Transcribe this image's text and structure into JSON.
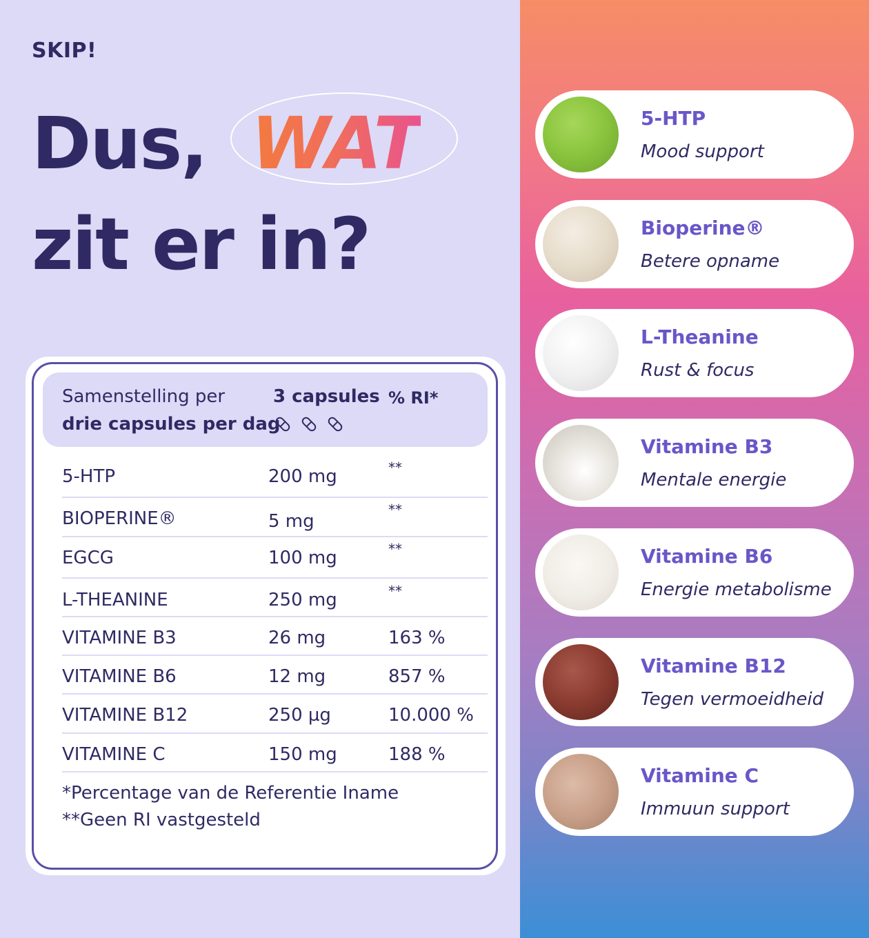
{
  "brand": "SKIP!",
  "headline": {
    "line1_prefix": "Dus,",
    "line1_highlight": "WAT",
    "line2": "zit er in?"
  },
  "table": {
    "header": {
      "label_line1": "Samenstelling per",
      "label_line2": "drie capsules per dag",
      "amount_col": "3 capsules",
      "ri_col": "% RI*"
    },
    "rows": [
      {
        "name": "5-HTP",
        "amount": "200 mg",
        "ri": "**"
      },
      {
        "name": "BIOPERINE®",
        "amount": "5 mg",
        "ri": "**"
      },
      {
        "name": "EGCG",
        "amount": "100 mg",
        "ri": "**"
      },
      {
        "name": "L-THEANINE",
        "amount": "250 mg",
        "ri": "**"
      },
      {
        "name": "VITAMINE B3",
        "amount": "26 mg",
        "ri": "163 %"
      },
      {
        "name": "VITAMINE B6",
        "amount": "12 mg",
        "ri": "857 %"
      },
      {
        "name": "VITAMINE B12",
        "amount": "250 µg",
        "ri": "10.000 %"
      },
      {
        "name": "VITAMINE C",
        "amount": "150 mg",
        "ri": "188 %"
      }
    ],
    "footnotes": [
      "*Percentage van de Referentie Iname",
      "**Geen RI vastgesteld"
    ]
  },
  "ingredients": [
    {
      "name": "5-HTP",
      "desc": "Mood support",
      "color": "#8cc63f"
    },
    {
      "name": "Bioperine®",
      "desc": "Betere opname",
      "color": "#e6dccb"
    },
    {
      "name": "L-Theanine",
      "desc": "Rust & focus",
      "color": "#f1f1f1"
    },
    {
      "name": "Vitamine B3",
      "desc": "Mentale energie",
      "color": "#e3e0da"
    },
    {
      "name": "Vitamine B6",
      "desc": "Energie metabolisme",
      "color": "#f0ece6"
    },
    {
      "name": "Vitamine B12",
      "desc": "Tegen vermoeidheid",
      "color": "#8a3b30"
    },
    {
      "name": "Vitamine C",
      "desc": "Immuun support",
      "color": "#c9a08a"
    }
  ]
}
